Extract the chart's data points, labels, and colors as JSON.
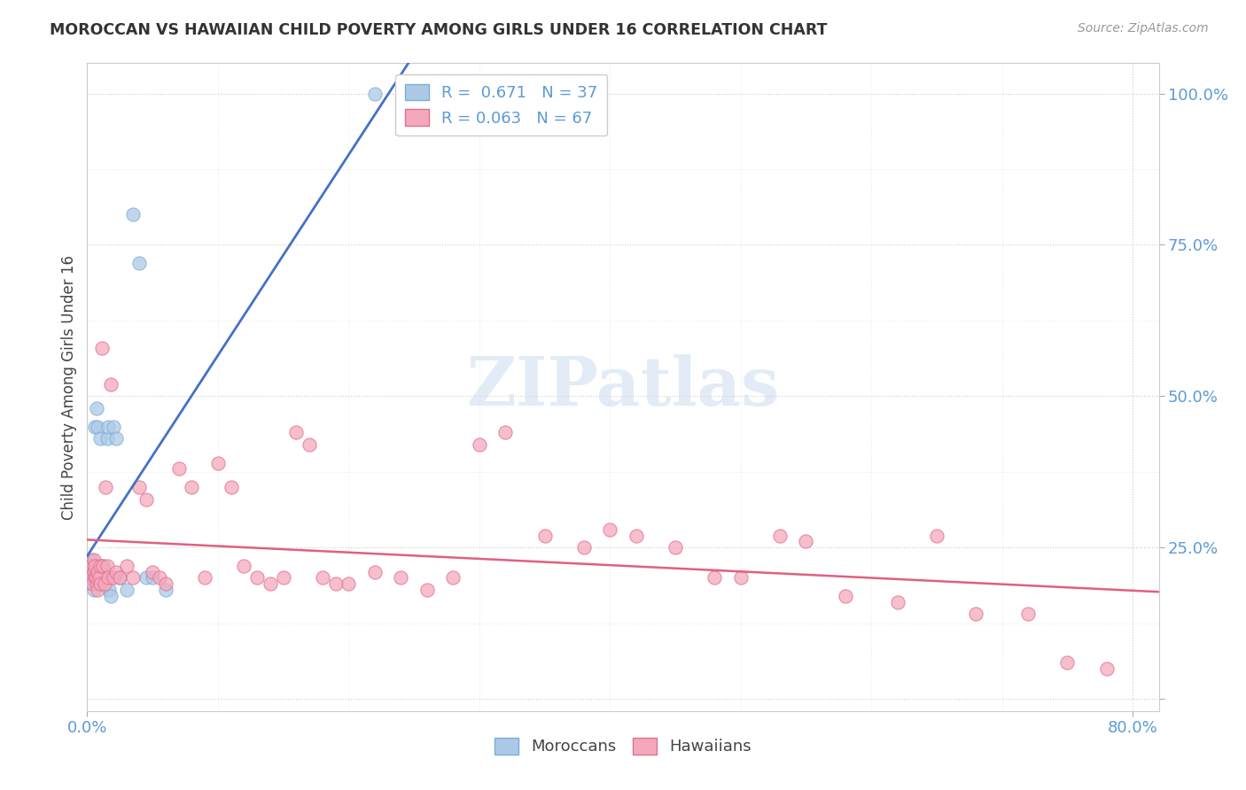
{
  "title": "MOROCCAN VS HAWAIIAN CHILD POVERTY AMONG GIRLS UNDER 16 CORRELATION CHART",
  "source": "Source: ZipAtlas.com",
  "ylabel": "Child Poverty Among Girls Under 16",
  "moroccan_R": 0.671,
  "moroccan_N": 37,
  "hawaiian_R": 0.063,
  "hawaiian_N": 67,
  "moroccan_color": "#adc9e8",
  "hawaiian_color": "#f5a8bc",
  "moroccan_edge": "#7aafd4",
  "hawaiian_edge": "#e07090",
  "line_moroccan_color": "#4472c4",
  "line_hawaiian_color": "#e06080",
  "watermark_color": "#d0dff0",
  "moroccan_x": [
    0.002,
    0.003,
    0.003,
    0.004,
    0.004,
    0.005,
    0.005,
    0.005,
    0.006,
    0.006,
    0.006,
    0.007,
    0.007,
    0.008,
    0.008,
    0.009,
    0.009,
    0.01,
    0.01,
    0.011,
    0.012,
    0.013,
    0.014,
    0.015,
    0.016,
    0.017,
    0.018,
    0.02,
    0.022,
    0.025,
    0.03,
    0.035,
    0.04,
    0.045,
    0.05,
    0.06,
    0.22
  ],
  "moroccan_y": [
    0.22,
    0.2,
    0.23,
    0.19,
    0.21,
    0.18,
    0.2,
    0.22,
    0.2,
    0.22,
    0.45,
    0.48,
    0.2,
    0.22,
    0.45,
    0.2,
    0.19,
    0.43,
    0.21,
    0.2,
    0.22,
    0.21,
    0.2,
    0.43,
    0.45,
    0.18,
    0.17,
    0.45,
    0.43,
    0.2,
    0.18,
    0.8,
    0.72,
    0.2,
    0.2,
    0.18,
    1.0
  ],
  "hawaiian_x": [
    0.002,
    0.003,
    0.004,
    0.005,
    0.005,
    0.006,
    0.006,
    0.007,
    0.007,
    0.008,
    0.008,
    0.009,
    0.01,
    0.01,
    0.011,
    0.012,
    0.013,
    0.014,
    0.015,
    0.016,
    0.018,
    0.02,
    0.022,
    0.025,
    0.03,
    0.035,
    0.04,
    0.045,
    0.05,
    0.055,
    0.06,
    0.07,
    0.08,
    0.09,
    0.1,
    0.11,
    0.12,
    0.13,
    0.14,
    0.15,
    0.16,
    0.17,
    0.18,
    0.19,
    0.2,
    0.22,
    0.24,
    0.26,
    0.28,
    0.3,
    0.32,
    0.35,
    0.38,
    0.4,
    0.42,
    0.45,
    0.48,
    0.5,
    0.53,
    0.55,
    0.58,
    0.62,
    0.65,
    0.68,
    0.72,
    0.75,
    0.78
  ],
  "hawaiian_y": [
    0.2,
    0.22,
    0.19,
    0.21,
    0.23,
    0.2,
    0.22,
    0.19,
    0.2,
    0.21,
    0.18,
    0.2,
    0.22,
    0.19,
    0.58,
    0.22,
    0.19,
    0.35,
    0.22,
    0.2,
    0.52,
    0.2,
    0.21,
    0.2,
    0.22,
    0.2,
    0.35,
    0.33,
    0.21,
    0.2,
    0.19,
    0.38,
    0.35,
    0.2,
    0.39,
    0.35,
    0.22,
    0.2,
    0.19,
    0.2,
    0.44,
    0.42,
    0.2,
    0.19,
    0.19,
    0.21,
    0.2,
    0.18,
    0.2,
    0.42,
    0.44,
    0.27,
    0.25,
    0.28,
    0.27,
    0.25,
    0.2,
    0.2,
    0.27,
    0.26,
    0.17,
    0.16,
    0.27,
    0.14,
    0.14,
    0.06,
    0.05
  ],
  "xlim": [
    0.0,
    0.82
  ],
  "ylim": [
    -0.02,
    1.05
  ],
  "xtick_positions": [
    0.0,
    0.8
  ],
  "xtick_labels": [
    "0.0%",
    "80.0%"
  ],
  "ytick_positions": [
    0.0,
    0.25,
    0.5,
    0.75,
    1.0
  ],
  "ytick_labels": [
    "",
    "25.0%",
    "50.0%",
    "75.0%",
    "100.0%"
  ],
  "tick_color": "#5b9bd5"
}
